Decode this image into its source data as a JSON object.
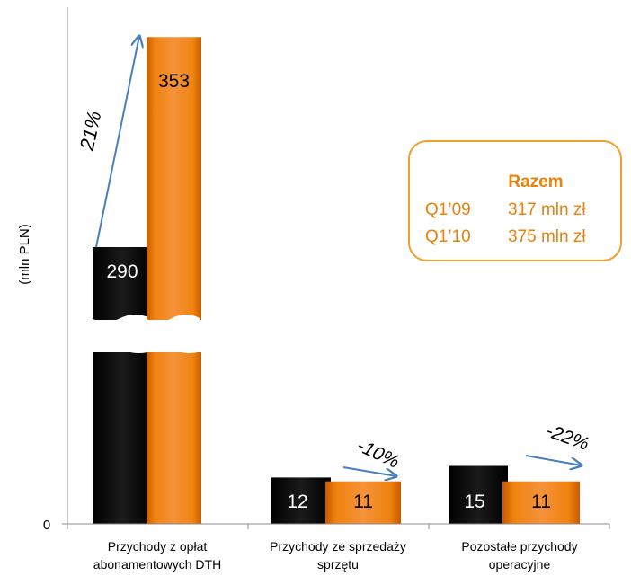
{
  "chart_data": {
    "type": "bar",
    "ylabel": "(mln PLN)",
    "categories": [
      "Przychody z opłat abonamentowych DTH",
      "Przychody ze sprzedaży sprzętu",
      "Pozostałe przychody operacyjne"
    ],
    "category_lines": [
      [
        "Przychody z opłat",
        "abonamentowych DTH"
      ],
      [
        "Przychody ze sprzedaży",
        "sprzętu"
      ],
      [
        "Pozostałe przychody",
        "operacyjne"
      ]
    ],
    "series": [
      {
        "color": "#000000",
        "values": [
          290,
          12,
          15
        ]
      },
      {
        "color": "#ee7203",
        "values": [
          353,
          11,
          11
        ]
      }
    ],
    "value_labels": [
      [
        "290",
        "353"
      ],
      [
        "12",
        "11"
      ],
      [
        "15",
        "11"
      ]
    ],
    "change_labels": [
      "21%",
      "-10%",
      "-22%"
    ],
    "y_ticks": [
      "0"
    ],
    "axis_break": true,
    "summary": {
      "title": "Razem",
      "rows": [
        {
          "period": "Q1’09",
          "value": "317 mln zł"
        },
        {
          "period": "Q1’10",
          "value": "375 mln zł"
        }
      ]
    },
    "colors": {
      "orange": "#ee7203",
      "arrow": "#4a7ebb",
      "box_border": "#f0a030",
      "summary_text": "#e8820c"
    }
  }
}
